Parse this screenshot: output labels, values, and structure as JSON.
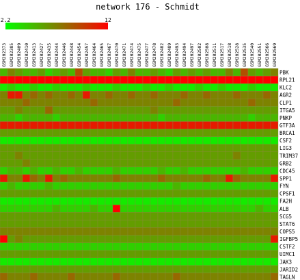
{
  "chart_data": {
    "type": "heatmap",
    "title": "network 176 - Schmidt",
    "color_scale": {
      "min": 2.2,
      "max": 12,
      "min_label": "2.2",
      "max_label": "12",
      "low_color": "#00ff00",
      "high_color": "#ff0000"
    },
    "samples": [
      "GSM202373",
      "GSM202385",
      "GSM202409",
      "GSM202410",
      "GSM202413",
      "GSM202427",
      "GSM202435",
      "GSM202444",
      "GSM202446",
      "GSM202448",
      "GSM202454",
      "GSM202457",
      "GSM202464",
      "GSM202465",
      "GSM202467",
      "GSM202470",
      "GSM202471",
      "GSM202474",
      "GSM202475",
      "GSM202477",
      "GSM202478",
      "GSM202482",
      "GSM202489",
      "GSM202493",
      "GSM202494",
      "GSM202497",
      "GSM202502",
      "GSM202508",
      "GSM202511",
      "GSM202517",
      "GSM202518",
      "GSM202528",
      "GSM202535",
      "GSM202540",
      "GSM202551",
      "GSM202566",
      "GSM202569"
    ],
    "genes": [
      "PBK",
      "RPL21",
      "KLC2",
      "AGR2",
      "CLP1",
      "ITGA5",
      "PNKP",
      "GTF3A",
      "BRCA1",
      "CSF2",
      "LIG3",
      "TRIM37",
      "GRB2",
      "CDC45",
      "SPP1",
      "FYN",
      "CPSF1",
      "FA2H",
      "ALB",
      "SCG5",
      "STAT6",
      "COPS5",
      "IGFBP5",
      "CSTF2",
      "UIMC1",
      "JAK3",
      "JARID2",
      "TAGLN"
    ],
    "values": [
      [
        5,
        7,
        6,
        5,
        5,
        6,
        4,
        5,
        6,
        5,
        9,
        6,
        5,
        5,
        4,
        6,
        5,
        7,
        5,
        5,
        6,
        5,
        4,
        6,
        5,
        6,
        5,
        6,
        5,
        5,
        7,
        5,
        9,
        6,
        5,
        6,
        7
      ],
      [
        12,
        12,
        12,
        12,
        12,
        12,
        12,
        12,
        12,
        12,
        12,
        12,
        12,
        12,
        12,
        12,
        12,
        12,
        12,
        12,
        12,
        12,
        12,
        12,
        12,
        12,
        12,
        12,
        12,
        12,
        12,
        12,
        12,
        12,
        12,
        12,
        12
      ],
      [
        3,
        4,
        3,
        3,
        4,
        3,
        3,
        4,
        3,
        3,
        3,
        4,
        3,
        3,
        3,
        4,
        3,
        3,
        3,
        4,
        3,
        3,
        4,
        3,
        3,
        3,
        4,
        3,
        3,
        4,
        3,
        3,
        3,
        4,
        3,
        3,
        3
      ],
      [
        7,
        11,
        11,
        7,
        8,
        7,
        8,
        7,
        7,
        8,
        7,
        11,
        7,
        7,
        8,
        7,
        7,
        8,
        7,
        7,
        8,
        7,
        7,
        7,
        8,
        7,
        7,
        8,
        7,
        7,
        7,
        8,
        7,
        7,
        7,
        8,
        7
      ],
      [
        7,
        7,
        7,
        8,
        7,
        7,
        7,
        7,
        7,
        7,
        7,
        7,
        8,
        7,
        7,
        7,
        7,
        7,
        7,
        7,
        7,
        7,
        7,
        8,
        7,
        7,
        7,
        7,
        7,
        7,
        7,
        7,
        7,
        8,
        7,
        7,
        7
      ],
      [
        6,
        6,
        7,
        6,
        6,
        6,
        8,
        6,
        6,
        6,
        6,
        6,
        6,
        6,
        6,
        6,
        6,
        6,
        6,
        6,
        7,
        6,
        6,
        6,
        6,
        6,
        6,
        6,
        6,
        6,
        6,
        6,
        6,
        6,
        6,
        6,
        6
      ],
      [
        5,
        5,
        4,
        5,
        5,
        5,
        5,
        4,
        5,
        5,
        5,
        5,
        5,
        5,
        5,
        5,
        5,
        5,
        5,
        5,
        5,
        4,
        5,
        5,
        5,
        5,
        5,
        5,
        5,
        5,
        5,
        5,
        5,
        4,
        5,
        5,
        5
      ],
      [
        11,
        11,
        11,
        11,
        11,
        11,
        11,
        11,
        11,
        11,
        11,
        11,
        11,
        11,
        11,
        11,
        11,
        11,
        11,
        11,
        11,
        11,
        11,
        11,
        11,
        11,
        11,
        11,
        11,
        11,
        11,
        11,
        11,
        11,
        11,
        11,
        11
      ],
      [
        6,
        6,
        6,
        6,
        6,
        6,
        6,
        6,
        6,
        6,
        6,
        6,
        6,
        6,
        6,
        6,
        6,
        6,
        6,
        6,
        6,
        6,
        6,
        6,
        6,
        6,
        6,
        6,
        6,
        6,
        6,
        6,
        6,
        6,
        6,
        6,
        6
      ],
      [
        3,
        3,
        3,
        3,
        3,
        3,
        3,
        3,
        3,
        3,
        3,
        3,
        3,
        3,
        3,
        3,
        3,
        3,
        3,
        3,
        3,
        3,
        3,
        3,
        3,
        3,
        3,
        3,
        3,
        3,
        3,
        3,
        3,
        3,
        3,
        3,
        3
      ],
      [
        6,
        6,
        6,
        6,
        6,
        6,
        6,
        6,
        6,
        6,
        6,
        6,
        6,
        6,
        6,
        6,
        6,
        6,
        6,
        6,
        6,
        6,
        6,
        6,
        6,
        6,
        6,
        6,
        6,
        6,
        6,
        6,
        6,
        6,
        6,
        6,
        6
      ],
      [
        6,
        6,
        7,
        6,
        6,
        6,
        6,
        6,
        6,
        6,
        6,
        6,
        6,
        6,
        6,
        6,
        6,
        6,
        6,
        6,
        6,
        6,
        6,
        6,
        6,
        6,
        6,
        6,
        6,
        6,
        6,
        7,
        6,
        6,
        6,
        6,
        6
      ],
      [
        6,
        6,
        6,
        7,
        6,
        6,
        6,
        6,
        6,
        6,
        6,
        6,
        6,
        6,
        6,
        6,
        6,
        6,
        6,
        6,
        6,
        6,
        6,
        6,
        6,
        6,
        6,
        6,
        6,
        6,
        6,
        6,
        6,
        6,
        6,
        6,
        6
      ],
      [
        4,
        5,
        5,
        4,
        5,
        4,
        4,
        5,
        4,
        4,
        5,
        4,
        4,
        4,
        4,
        5,
        4,
        4,
        4,
        4,
        4,
        5,
        4,
        4,
        5,
        4,
        4,
        4,
        4,
        4,
        4,
        4,
        5,
        4,
        4,
        4,
        4
      ],
      [
        11,
        7,
        7,
        11,
        8,
        7,
        11,
        7,
        8,
        7,
        7,
        7,
        7,
        7,
        7,
        8,
        7,
        7,
        7,
        7,
        7,
        8,
        7,
        7,
        7,
        7,
        7,
        8,
        7,
        7,
        11,
        8,
        7,
        7,
        7,
        7,
        11
      ],
      [
        4,
        5,
        4,
        4,
        4,
        4,
        5,
        4,
        4,
        4,
        4,
        4,
        4,
        4,
        4,
        4,
        4,
        4,
        4,
        4,
        4,
        4,
        4,
        5,
        4,
        4,
        4,
        4,
        4,
        4,
        4,
        4,
        4,
        4,
        4,
        4,
        4
      ],
      [
        6,
        6,
        6,
        6,
        6,
        6,
        6,
        6,
        6,
        6,
        6,
        6,
        6,
        6,
        6,
        6,
        6,
        6,
        6,
        6,
        6,
        6,
        6,
        6,
        6,
        6,
        6,
        6,
        6,
        6,
        6,
        6,
        6,
        6,
        6,
        6,
        6
      ],
      [
        3,
        3,
        3,
        3,
        3,
        3,
        3,
        3,
        3,
        3,
        3,
        3,
        3,
        3,
        3,
        3,
        3,
        3,
        3,
        3,
        3,
        3,
        3,
        3,
        3,
        3,
        3,
        3,
        3,
        3,
        3,
        3,
        3,
        3,
        3,
        3,
        3
      ],
      [
        4,
        4,
        4,
        4,
        4,
        4,
        4,
        5,
        4,
        4,
        4,
        4,
        5,
        4,
        4,
        12,
        4,
        4,
        4,
        4,
        4,
        4,
        4,
        4,
        4,
        4,
        4,
        4,
        4,
        4,
        4,
        4,
        4,
        4,
        5,
        4,
        4
      ],
      [
        6,
        6,
        6,
        6,
        6,
        6,
        6,
        6,
        6,
        6,
        6,
        6,
        6,
        6,
        6,
        6,
        6,
        6,
        6,
        6,
        6,
        6,
        6,
        6,
        6,
        6,
        6,
        6,
        6,
        6,
        6,
        6,
        6,
        6,
        6,
        6,
        6
      ],
      [
        6,
        6,
        6,
        6,
        6,
        6,
        6,
        6,
        6,
        6,
        6,
        6,
        6,
        6,
        6,
        6,
        6,
        6,
        6,
        6,
        6,
        6,
        6,
        6,
        6,
        6,
        6,
        6,
        6,
        6,
        6,
        6,
        6,
        6,
        6,
        6,
        6
      ],
      [
        7,
        7,
        7,
        7,
        7,
        7,
        7,
        7,
        7,
        7,
        7,
        7,
        7,
        7,
        7,
        7,
        7,
        7,
        7,
        7,
        7,
        7,
        7,
        7,
        7,
        7,
        7,
        7,
        7,
        7,
        7,
        7,
        7,
        7,
        7,
        7,
        7
      ],
      [
        12,
        6,
        7,
        6,
        6,
        6,
        6,
        6,
        6,
        6,
        6,
        6,
        6,
        6,
        6,
        6,
        6,
        6,
        6,
        6,
        6,
        6,
        6,
        6,
        6,
        6,
        6,
        6,
        6,
        6,
        6,
        6,
        6,
        6,
        6,
        6,
        11
      ],
      [
        4,
        4,
        4,
        4,
        4,
        4,
        4,
        4,
        4,
        4,
        4,
        4,
        4,
        4,
        4,
        4,
        4,
        4,
        4,
        4,
        4,
        4,
        4,
        4,
        4,
        4,
        4,
        4,
        4,
        4,
        4,
        4,
        4,
        4,
        4,
        4,
        4
      ],
      [
        6,
        6,
        6,
        6,
        6,
        6,
        6,
        6,
        6,
        6,
        6,
        6,
        6,
        6,
        6,
        6,
        6,
        6,
        6,
        6,
        6,
        6,
        6,
        6,
        6,
        6,
        6,
        6,
        6,
        6,
        6,
        6,
        6,
        6,
        6,
        6,
        6
      ],
      [
        3,
        3,
        3,
        3,
        3,
        3,
        3,
        3,
        3,
        3,
        3,
        3,
        3,
        3,
        3,
        3,
        3,
        3,
        3,
        3,
        3,
        3,
        3,
        3,
        3,
        3,
        3,
        3,
        3,
        3,
        3,
        3,
        3,
        3,
        3,
        3,
        3
      ],
      [
        6,
        6,
        6,
        6,
        6,
        6,
        6,
        6,
        6,
        6,
        6,
        6,
        6,
        6,
        6,
        6,
        6,
        6,
        6,
        6,
        6,
        6,
        6,
        6,
        6,
        6,
        6,
        6,
        6,
        6,
        6,
        6,
        6,
        6,
        6,
        6,
        6
      ],
      [
        8,
        7,
        7,
        7,
        8,
        7,
        7,
        7,
        7,
        8,
        7,
        7,
        7,
        7,
        7,
        8,
        7,
        7,
        7,
        7,
        7,
        7,
        7,
        8,
        7,
        7,
        7,
        7,
        7,
        7,
        7,
        7,
        7,
        7,
        7,
        7,
        8
      ]
    ]
  }
}
